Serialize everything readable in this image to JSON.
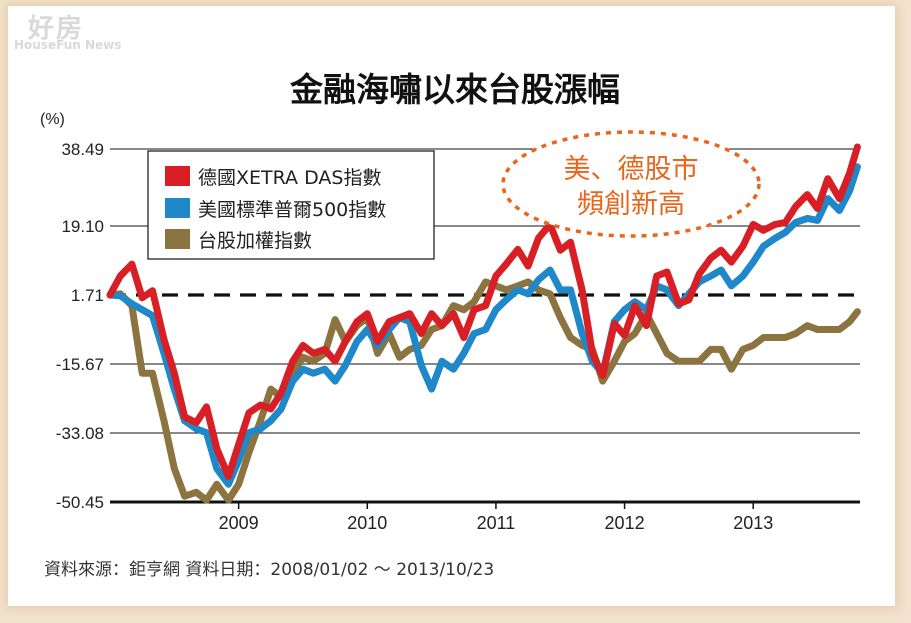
{
  "watermark": {
    "brand_cn": "好房",
    "brand_en": "HouseFun News"
  },
  "chart_data": {
    "type": "line",
    "title": "金融海嘯以來台股漲幅",
    "ylabel": "(%)",
    "yticks": [
      "38.49",
      "19.10",
      "1.71",
      "-15.67",
      "-33.08",
      "-50.45"
    ],
    "ytick_values": [
      38.49,
      19.1,
      1.71,
      -15.67,
      -33.08,
      -50.45
    ],
    "ylim": [
      -50.45,
      38.49
    ],
    "xticks": [
      "2009",
      "2010",
      "2011",
      "2012",
      "2013"
    ],
    "xtick_values": [
      2009,
      2010,
      2011,
      2012,
      2013
    ],
    "xlim": [
      2008.0,
      2013.83
    ],
    "grid": "horizontal",
    "reference_line": {
      "y": 1.71,
      "style": "dashed"
    },
    "legend_position": "top-left",
    "callout": {
      "lines": [
        "美、德股市",
        "頻創新高"
      ]
    },
    "source": "資料來源：鉅亨網 資料日期：2008/01/02 ～ 2013/10/23",
    "series": [
      {
        "name": "德國XETRA DAS指數",
        "color": "#d81f26",
        "x": [
          2008.0,
          2008.08,
          2008.17,
          2008.25,
          2008.33,
          2008.42,
          2008.5,
          2008.58,
          2008.67,
          2008.75,
          2008.83,
          2008.92,
          2009.0,
          2009.08,
          2009.17,
          2009.25,
          2009.33,
          2009.42,
          2009.5,
          2009.58,
          2009.67,
          2009.75,
          2009.83,
          2009.92,
          2010.0,
          2010.08,
          2010.17,
          2010.25,
          2010.33,
          2010.42,
          2010.5,
          2010.58,
          2010.67,
          2010.75,
          2010.83,
          2010.92,
          2011.0,
          2011.08,
          2011.17,
          2011.25,
          2011.33,
          2011.42,
          2011.5,
          2011.58,
          2011.67,
          2011.75,
          2011.83,
          2011.92,
          2012.0,
          2012.08,
          2012.17,
          2012.25,
          2012.33,
          2012.42,
          2012.5,
          2012.58,
          2012.67,
          2012.75,
          2012.83,
          2012.92,
          2013.0,
          2013.08,
          2013.17,
          2013.25,
          2013.33,
          2013.42,
          2013.5,
          2013.58,
          2013.67,
          2013.75,
          2013.81
        ],
        "values": [
          1.7,
          6.5,
          9.5,
          1.0,
          2.8,
          -9.5,
          -18,
          -29,
          -30.5,
          -26.5,
          -37,
          -44,
          -36,
          -28,
          -26,
          -27,
          -23,
          -15,
          -11,
          -13,
          -12,
          -15,
          -10,
          -5,
          -3,
          -10,
          -5,
          -4,
          -3,
          -8,
          -3,
          -6,
          -3,
          -9,
          -2,
          -1,
          6.5,
          9.5,
          13.2,
          9.0,
          16,
          19.5,
          13,
          15,
          3,
          -13,
          -18.6,
          -5.5,
          -8.5,
          -1,
          -6,
          6.5,
          7.5,
          -0.5,
          0.5,
          7,
          11,
          13,
          10,
          14,
          19.5,
          18,
          19.5,
          20,
          24,
          27,
          23.5,
          31,
          26,
          32.5,
          39
        ]
      },
      {
        "name": "美國標準普爾500指數",
        "color": "#1e88c8",
        "x": [
          2008.0,
          2008.08,
          2008.17,
          2008.25,
          2008.33,
          2008.42,
          2008.5,
          2008.58,
          2008.67,
          2008.75,
          2008.83,
          2008.92,
          2009.0,
          2009.08,
          2009.17,
          2009.25,
          2009.33,
          2009.42,
          2009.5,
          2009.58,
          2009.67,
          2009.75,
          2009.83,
          2009.92,
          2010.0,
          2010.08,
          2010.17,
          2010.25,
          2010.33,
          2010.42,
          2010.5,
          2010.58,
          2010.67,
          2010.75,
          2010.83,
          2010.92,
          2011.0,
          2011.08,
          2011.17,
          2011.25,
          2011.33,
          2011.42,
          2011.5,
          2011.58,
          2011.67,
          2011.75,
          2011.83,
          2011.92,
          2012.0,
          2012.08,
          2012.17,
          2012.25,
          2012.33,
          2012.42,
          2012.5,
          2012.58,
          2012.67,
          2012.75,
          2012.83,
          2012.92,
          2013.0,
          2013.08,
          2013.17,
          2013.25,
          2013.33,
          2013.42,
          2013.5,
          2013.58,
          2013.67,
          2013.75,
          2013.81
        ],
        "values": [
          1.7,
          1.5,
          -0.5,
          -2,
          -3.5,
          -13,
          -22,
          -30,
          -32,
          -33,
          -42,
          -46,
          -40,
          -33,
          -32,
          -30,
          -27,
          -20,
          -17,
          -18,
          -17,
          -20,
          -16,
          -10,
          -7,
          -11,
          -7,
          -4,
          -5,
          -16,
          -22,
          -15,
          -17,
          -13,
          -8,
          -7,
          -2,
          0.5,
          3,
          2,
          5.5,
          8,
          3,
          3,
          -8,
          -15,
          -18,
          -5,
          -2,
          0,
          -2,
          4,
          3,
          -1,
          2,
          5,
          6.5,
          8,
          4,
          6.5,
          10,
          14,
          16,
          17.5,
          20,
          21,
          20.5,
          26,
          23,
          28,
          34
        ]
      },
      {
        "name": "台股加權指數",
        "color": "#8b7440",
        "x": [
          2008.0,
          2008.08,
          2008.17,
          2008.25,
          2008.33,
          2008.42,
          2008.5,
          2008.58,
          2008.67,
          2008.75,
          2008.83,
          2008.92,
          2009.0,
          2009.08,
          2009.17,
          2009.25,
          2009.33,
          2009.42,
          2009.5,
          2009.58,
          2009.67,
          2009.75,
          2009.83,
          2009.92,
          2010.0,
          2010.08,
          2010.17,
          2010.25,
          2010.33,
          2010.42,
          2010.5,
          2010.58,
          2010.67,
          2010.75,
          2010.83,
          2010.92,
          2011.0,
          2011.08,
          2011.17,
          2011.25,
          2011.33,
          2011.42,
          2011.5,
          2011.58,
          2011.67,
          2011.75,
          2011.83,
          2011.92,
          2012.0,
          2012.08,
          2012.17,
          2012.25,
          2012.33,
          2012.42,
          2012.5,
          2012.58,
          2012.67,
          2012.75,
          2012.83,
          2012.92,
          2013.0,
          2013.08,
          2013.17,
          2013.25,
          2013.33,
          2013.42,
          2013.5,
          2013.58,
          2013.67,
          2013.75,
          2013.81
        ],
        "values": [
          1.7,
          2,
          -1,
          -18,
          -18,
          -30,
          -42,
          -49,
          -48,
          -50,
          -46,
          -50,
          -46,
          -38,
          -30,
          -22,
          -24,
          -18,
          -14,
          -15,
          -13,
          -4.5,
          -10,
          -6,
          -4,
          -13,
          -8,
          -14,
          -12,
          -11,
          -7,
          -6,
          -1,
          -2,
          0,
          5,
          4,
          3,
          4,
          5,
          3,
          2,
          -4,
          -9,
          -11,
          -12,
          -20,
          -15,
          -10,
          -8,
          -3,
          -8,
          -13,
          -15,
          -15,
          -15,
          -12,
          -12,
          -17,
          -12,
          -11,
          -9,
          -9,
          -9,
          -8,
          -6,
          -7,
          -7,
          -7,
          -5,
          -2.5
        ]
      }
    ]
  }
}
